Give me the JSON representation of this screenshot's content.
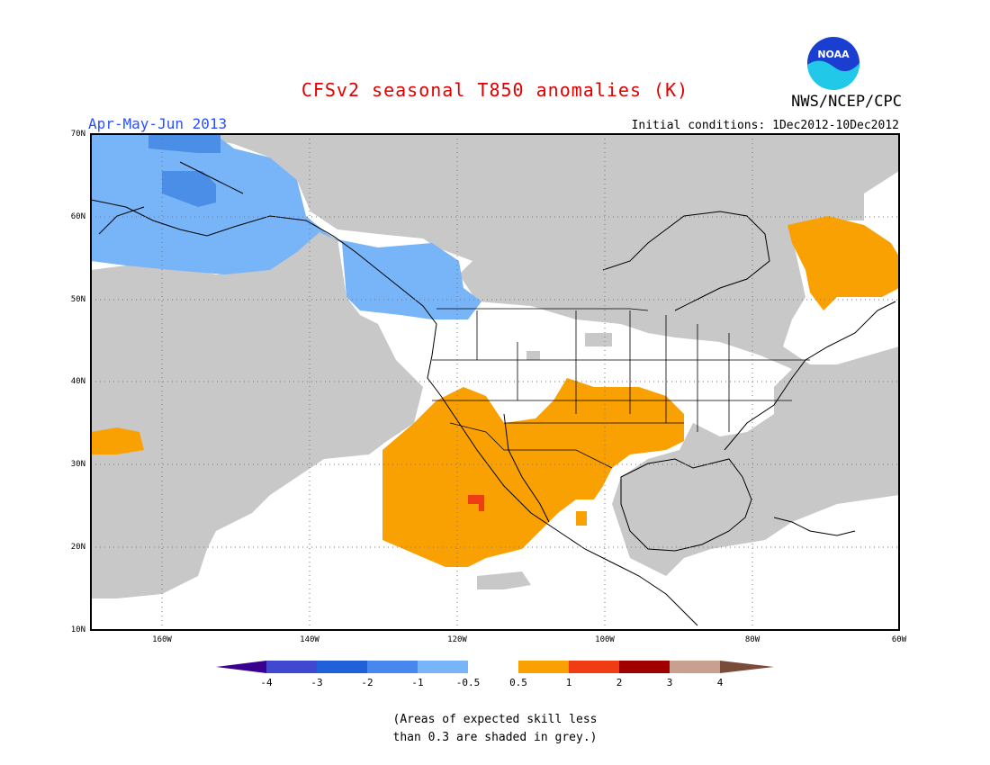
{
  "header": {
    "title": "CFSv2 seasonal T850 anomalies (K)",
    "agency": "NWS/NCEP/CPC",
    "season": "Apr-May-Jun 2013",
    "initial_conditions": "Initial conditions: 1Dec2012-10Dec2012",
    "logo_text": "NOAA"
  },
  "map": {
    "lat_labels": [
      "70N",
      "60N",
      "50N",
      "40N",
      "30N",
      "20N",
      "10N"
    ],
    "lon_labels": [
      "160W",
      "140W",
      "120W",
      "100W",
      "80W",
      "60W"
    ],
    "grid": "dotted",
    "colors": {
      "grey_low_skill": "#c8c8c8",
      "light_blue": "#78b4f8",
      "mid_blue": "#4a8ee8",
      "orange": "#f9a102",
      "red_orange": "#f03c14"
    }
  },
  "colorbar": {
    "labels": [
      "-4",
      "-3",
      "-2",
      "-1",
      "-0.5",
      "0.5",
      "1",
      "2",
      "3",
      "4"
    ],
    "colors": [
      "#3a0090",
      "#4048d0",
      "#2060d8",
      "#4888ee",
      "#78b4f8",
      "#ffffff",
      "#f9a102",
      "#f03c14",
      "#a00000",
      "#c8a090",
      "#7a4a3a"
    ]
  },
  "footnote": {
    "line1": "(Areas of expected skill less",
    "line2": "than 0.3 are shaded in grey.)"
  }
}
